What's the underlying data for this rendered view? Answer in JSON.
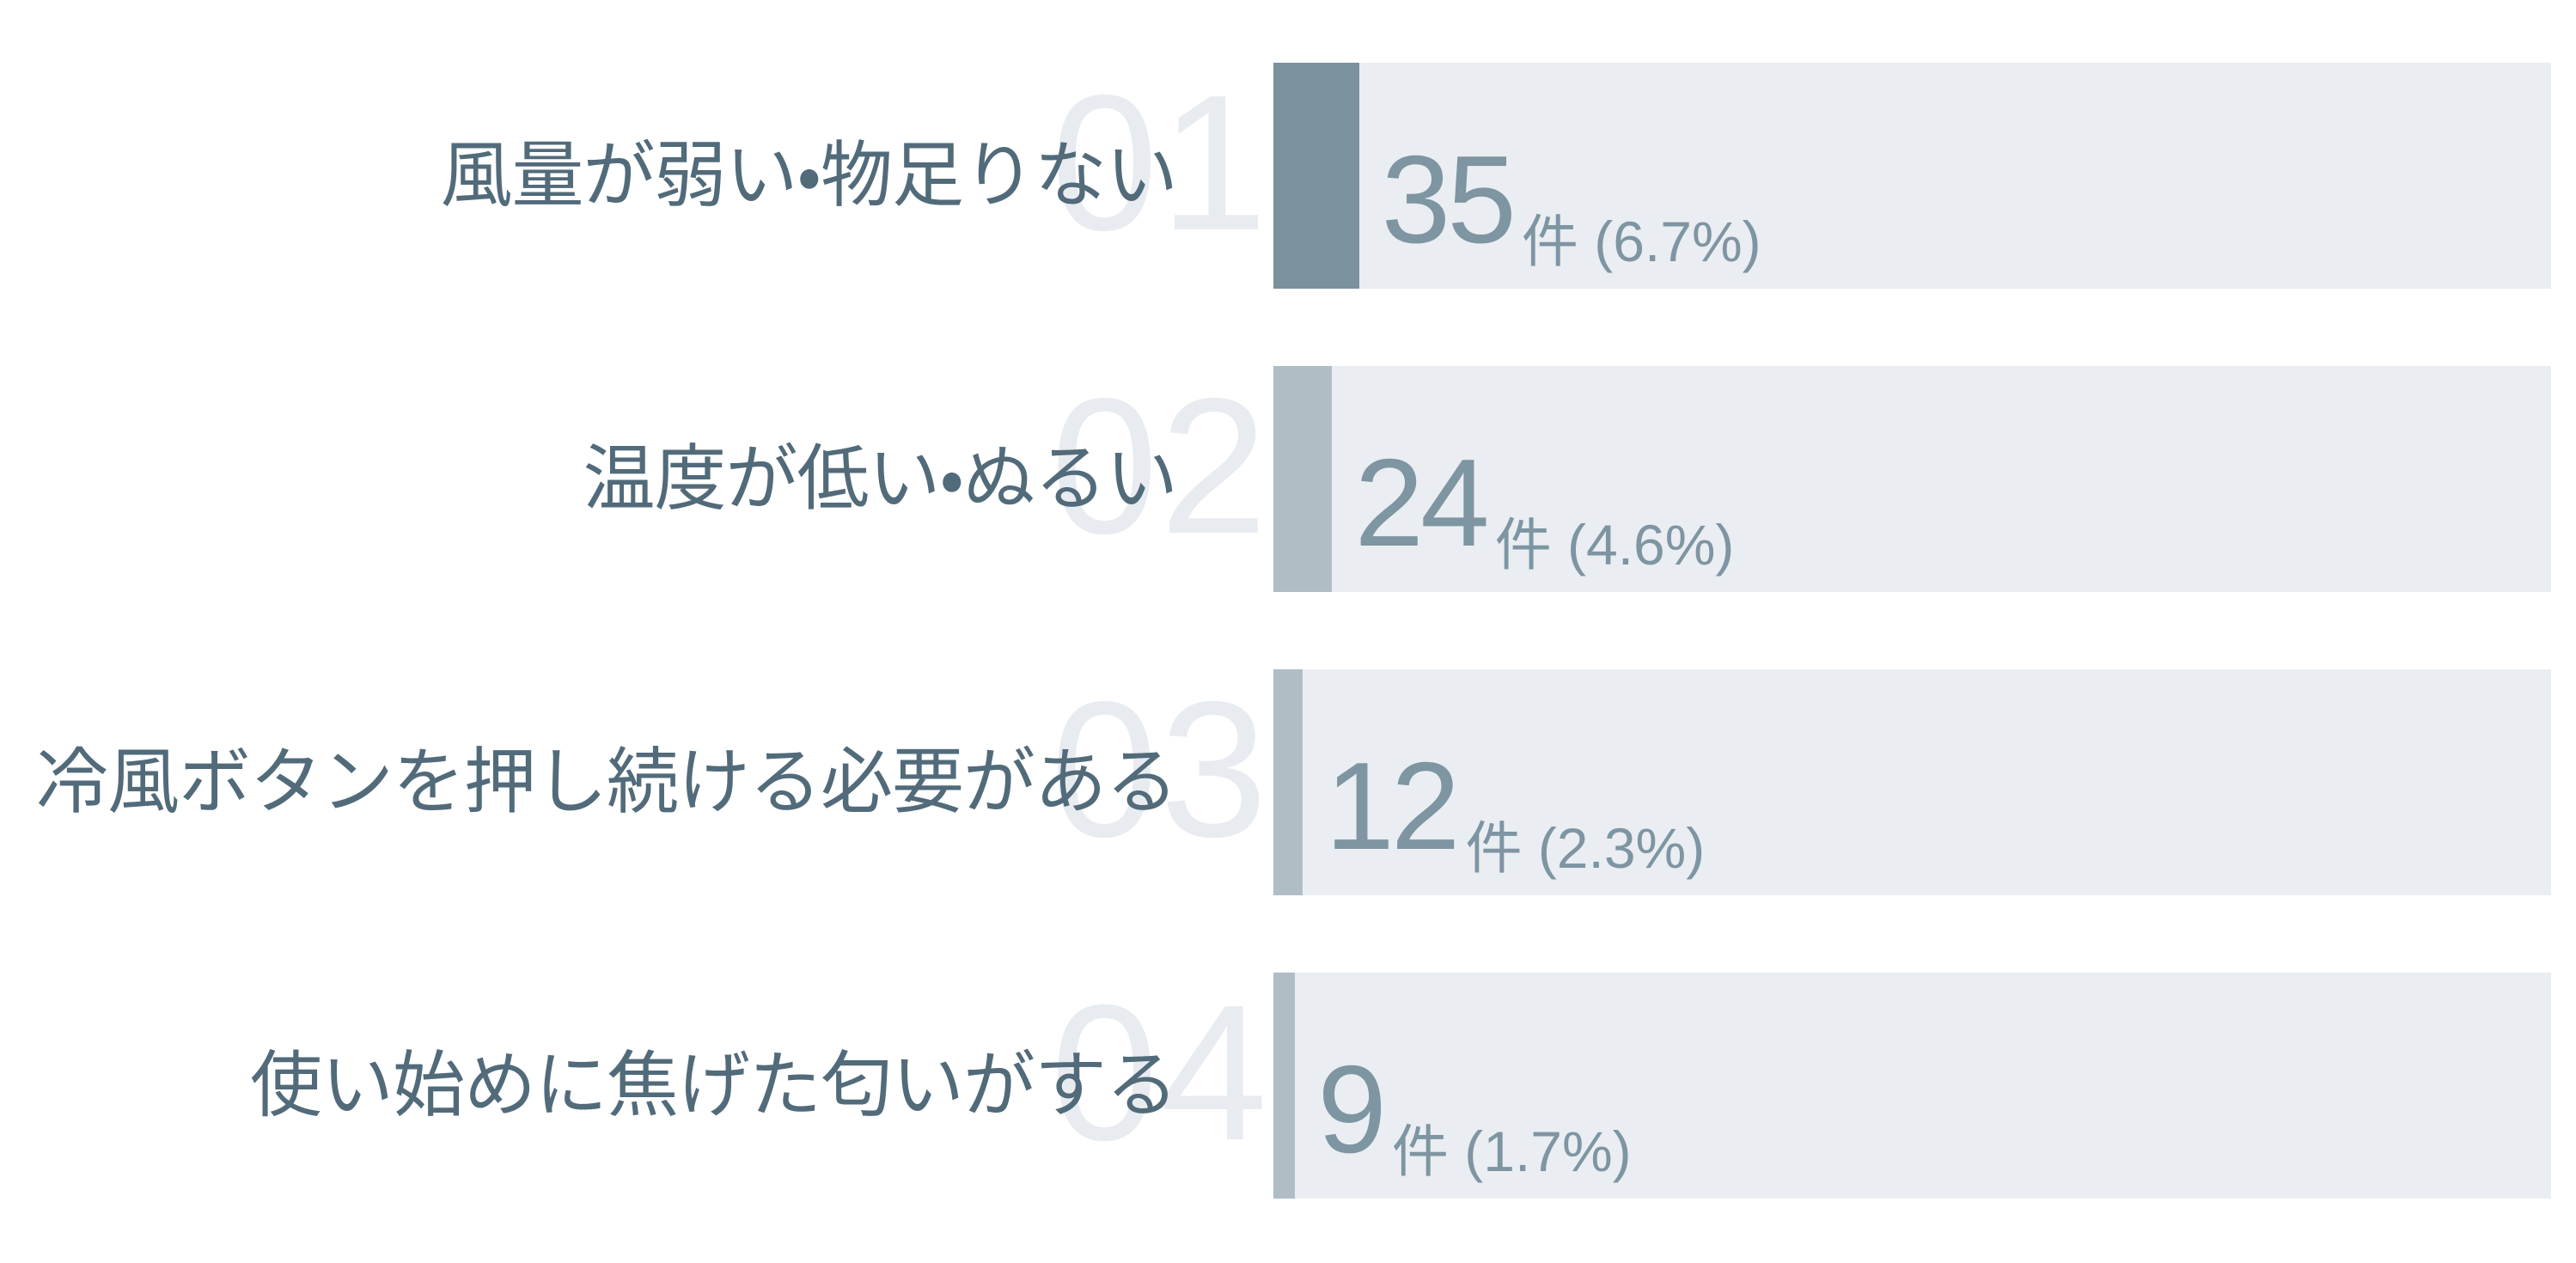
{
  "chart_data": {
    "type": "bar",
    "orientation": "horizontal",
    "title": "",
    "xlabel": "",
    "ylabel": "",
    "unit": "件",
    "grid": false,
    "legend": false,
    "xlim_percent": [
      0,
      100
    ],
    "categories": [
      "風量が弱い・物足りない",
      "温度が低い・ぬるい",
      "冷風ボタンを押し続ける必要がある",
      "使い始めに焦げた匂いがする"
    ],
    "values": [
      35,
      24,
      12,
      9
    ],
    "percentages": [
      6.7,
      4.6,
      2.3,
      1.7
    ],
    "colors": {
      "background": "#ffffff",
      "track": "#eaedf1",
      "ghost_number": "#e8ecf0",
      "label_text": "#526b7a",
      "value_text": "#7e95a2",
      "fill_highlight": "#7a919e",
      "fill_default": "#b1bdc5"
    },
    "rows": [
      {
        "rank": "01",
        "label": "風量が弱い・物足りない",
        "value": "35",
        "unit_percent": "件 (6.7%)",
        "percent": 6.7,
        "highlighted": true
      },
      {
        "rank": "02",
        "label": "温度が低い・ぬるい",
        "value": "24",
        "unit_percent": "件 (4.6%)",
        "percent": 4.6,
        "highlighted": false
      },
      {
        "rank": "03",
        "label": "冷風ボタンを押し続ける必要がある",
        "value": "12",
        "unit_percent": "件 (2.3%)",
        "percent": 2.3,
        "highlighted": false
      },
      {
        "rank": "04",
        "label": "使い始めに焦げた匂いがする",
        "value": "9",
        "unit_percent": "件 (1.7%)",
        "percent": 1.7,
        "highlighted": false
      }
    ]
  }
}
